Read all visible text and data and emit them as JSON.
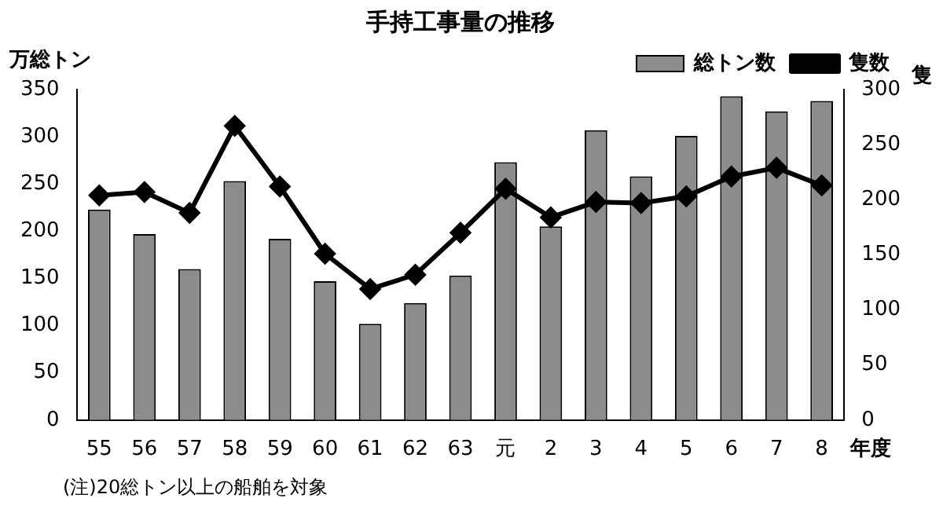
{
  "chart_data": {
    "type": "bar",
    "title": "手持工事量の推移",
    "categories": [
      "55",
      "56",
      "57",
      "58",
      "59",
      "60",
      "61",
      "62",
      "63",
      "元",
      "2",
      "3",
      "4",
      "5",
      "6",
      "7",
      "8"
    ],
    "series": [
      {
        "name": "総トン数",
        "color": "#8c8c8c",
        "values": [
          223,
          197,
          160,
          253,
          192,
          147,
          102,
          124,
          153,
          273,
          205,
          307,
          258,
          301,
          343,
          327,
          338
        ]
      },
      {
        "name": "隻数",
        "type": "line",
        "axis": "y2",
        "color": "#000000",
        "values": [
          204,
          207,
          188,
          267,
          212,
          151,
          119,
          132,
          170,
          210,
          184,
          198,
          197,
          203,
          221,
          229,
          213
        ]
      }
    ],
    "ylabel": "万総トン",
    "y2label": "隻",
    "xlabel": "年度",
    "ylim": [
      0,
      350
    ],
    "yticks": [
      0,
      50,
      100,
      150,
      200,
      250,
      300,
      350
    ],
    "y2lim": [
      0,
      300
    ],
    "y2ticks": [
      0,
      50,
      100,
      150,
      200,
      250,
      300
    ],
    "legend": "top right",
    "marker": "diamond",
    "grid": false,
    "annotations": [
      "(注)20総トン以上の船舶を対象"
    ]
  }
}
